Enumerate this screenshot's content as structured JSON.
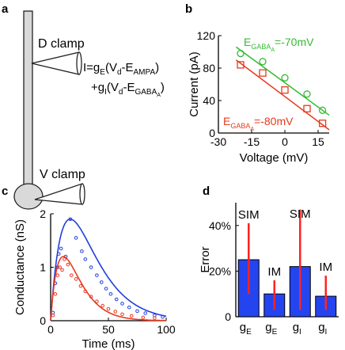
{
  "panels": {
    "a": {
      "letter": "a",
      "d_clamp": "D clamp",
      "v_clamp": "V clamp",
      "eq1": {
        "lead": "I=g",
        "sub1": "E",
        "mid": "(V",
        "sub2": "d",
        "mid2": "-E",
        "sub3": "AMPA",
        "tail": ")"
      },
      "eq2": {
        "lead": "+g",
        "sub1": "I",
        "mid": "(V",
        "sub2": "d",
        "mid2": "-E",
        "sub3": "GABA",
        "sub4": "A",
        "tail": ")"
      }
    },
    "b": {
      "letter": "b"
    },
    "c": {
      "letter": "c"
    },
    "d": {
      "letter": "d"
    }
  },
  "colors": {
    "green": "#33bb33",
    "red": "#e8391e",
    "blue": "#1f3ee0",
    "bar_blue": "#2444f0",
    "err_red": "#ff2222",
    "neuron_fill": "#d9d9d9"
  },
  "chart_data": [
    {
      "panel": "b",
      "type": "scatter",
      "xlabel": "Voltage (mV)",
      "ylabel": "Current (pA)",
      "xlim": [
        -30,
        20
      ],
      "ylim": [
        0,
        120
      ],
      "xticks": [
        -30,
        -15,
        0,
        15
      ],
      "yticks": [
        0,
        40,
        80,
        120
      ],
      "series": [
        {
          "name_prefix": "E",
          "name_sub": "GABA",
          "name_subsub": "A",
          "name_value": "=-70mV",
          "color": "green",
          "marker": "circle",
          "x": [
            -20,
            -10,
            0,
            10,
            17
          ],
          "y": [
            98,
            88,
            68,
            48,
            28
          ],
          "fit": [
            [
              -22,
              106
            ],
            [
              20,
              22
            ]
          ]
        },
        {
          "name_prefix": "E",
          "name_sub": "GABA",
          "name_subsub": "A",
          "name_value": "=-80mV",
          "color": "red",
          "marker": "square",
          "x": [
            -20,
            -10,
            0,
            10,
            17
          ],
          "y": [
            84,
            74,
            53,
            30,
            12
          ],
          "fit": [
            [
              -22,
              90
            ],
            [
              20,
              4
            ]
          ]
        }
      ]
    },
    {
      "panel": "c",
      "type": "line",
      "xlabel": "Time (ms)",
      "ylabel": "Conductance (nS)",
      "xlim": [
        0,
        100
      ],
      "ylim": [
        0,
        2
      ],
      "xticks": [
        0,
        50,
        100
      ],
      "yticks": [
        0,
        1,
        2
      ],
      "series": [
        {
          "color": "blue",
          "fit_peak": 1.9,
          "fit_peak_t": 17,
          "points": [
            [
              2,
              0.15
            ],
            [
              4,
              0.7
            ],
            [
              6,
              1.0
            ],
            [
              7,
              1.25
            ],
            [
              9,
              1.35
            ],
            [
              13,
              1.2
            ],
            [
              17,
              1.9
            ],
            [
              22,
              1.55
            ],
            [
              27,
              1.3
            ],
            [
              30,
              1.15
            ],
            [
              35,
              1.0
            ],
            [
              40,
              0.85
            ],
            [
              44,
              0.72
            ],
            [
              48,
              0.6
            ],
            [
              52,
              0.5
            ],
            [
              57,
              0.4
            ],
            [
              62,
              0.32
            ],
            [
              68,
              0.25
            ],
            [
              75,
              0.18
            ],
            [
              82,
              0.14
            ],
            [
              90,
              0.1
            ],
            [
              97,
              0.07
            ]
          ]
        },
        {
          "color": "red",
          "fit_peak": 1.2,
          "fit_peak_t": 11,
          "points": [
            [
              2,
              0.1
            ],
            [
              4,
              0.5
            ],
            [
              6,
              0.85
            ],
            [
              8,
              1.0
            ],
            [
              10,
              0.95
            ],
            [
              12,
              1.15
            ],
            [
              15,
              1.05
            ],
            [
              18,
              0.85
            ],
            [
              22,
              0.78
            ],
            [
              26,
              0.65
            ],
            [
              30,
              0.55
            ],
            [
              35,
              0.45
            ],
            [
              40,
              0.36
            ],
            [
              45,
              0.28
            ],
            [
              50,
              0.22
            ],
            [
              56,
              0.17
            ],
            [
              62,
              0.12
            ],
            [
              70,
              0.09
            ],
            [
              80,
              0.06
            ],
            [
              90,
              0.05
            ]
          ]
        }
      ]
    },
    {
      "panel": "d",
      "type": "bar",
      "ylabel": "Error",
      "ylim": [
        0,
        50
      ],
      "yticks": [
        0,
        20,
        40
      ],
      "ytick_labels": [
        "0",
        "20%",
        "40%"
      ],
      "categories": [
        {
          "main": "g",
          "sub": "E",
          "tag": "SIM"
        },
        {
          "main": "g",
          "sub": "E",
          "tag": "IM"
        },
        {
          "main": "g",
          "sub": "I",
          "tag": "SIM"
        },
        {
          "main": "g",
          "sub": "I",
          "tag": "IM"
        }
      ],
      "values": [
        25,
        10,
        22,
        9
      ],
      "err_low": [
        10,
        3,
        3,
        3
      ],
      "err_high": [
        41,
        16,
        47,
        18
      ]
    }
  ]
}
